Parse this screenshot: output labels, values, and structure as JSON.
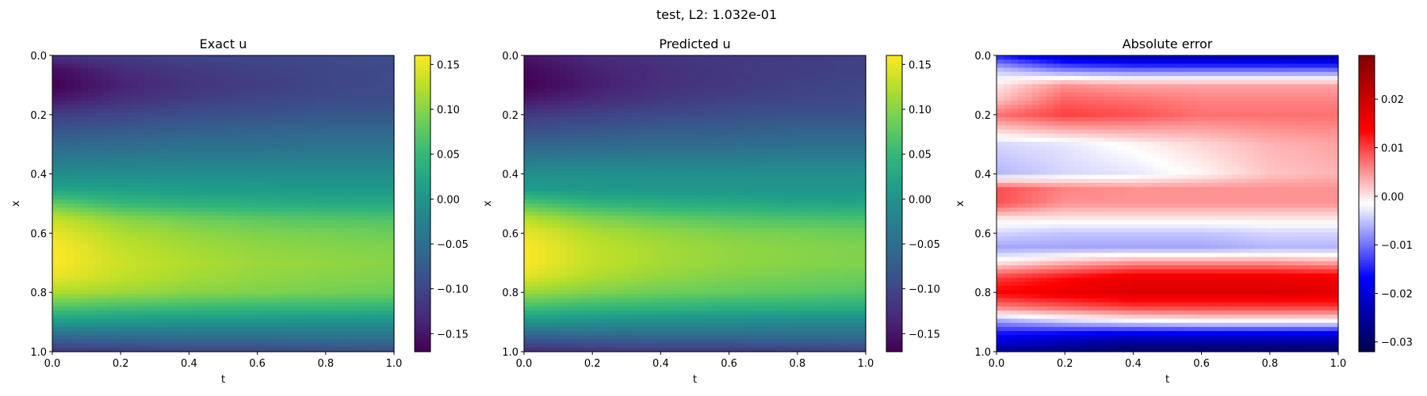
{
  "figure": {
    "suptitle": "test, L2: 1.032e-01"
  },
  "colormaps": {
    "viridis": [
      "#440154",
      "#482878",
      "#3e4989",
      "#31688e",
      "#26828e",
      "#1f9e89",
      "#35b779",
      "#6ece58",
      "#b5de2b",
      "#fde725"
    ],
    "seismic": [
      "#00004c",
      "#0000ff",
      "#ffffff",
      "#ff0000",
      "#800000"
    ]
  },
  "chart_data": [
    {
      "type": "heatmap",
      "title": "Exact u",
      "xlabel": "t",
      "ylabel": "x",
      "xlim": [
        0.0,
        1.0
      ],
      "ylim": [
        0.0,
        1.0
      ],
      "y_inverted": true,
      "xticks": [
        0.0,
        0.2,
        0.4,
        0.6,
        0.8,
        1.0
      ],
      "xtick_labels": [
        "0.0",
        "0.2",
        "0.4",
        "0.6",
        "0.8",
        "1.0"
      ],
      "yticks": [
        0.0,
        0.2,
        0.4,
        0.6,
        0.8,
        1.0
      ],
      "ytick_labels": [
        "0.0",
        "0.2",
        "0.4",
        "0.6",
        "0.8",
        "1.0"
      ],
      "colormap": "viridis",
      "colorbar": {
        "min": -0.17,
        "max": 0.16,
        "ticks": [
          -0.15,
          -0.1,
          -0.05,
          0.0,
          0.05,
          0.1,
          0.15
        ],
        "tick_labels": [
          "−0.15",
          "−0.10",
          "−0.05",
          "0.00",
          "0.05",
          "0.10",
          "0.15"
        ]
      },
      "x": [
        0.0,
        0.2,
        0.4,
        0.6,
        0.8,
        1.0
      ],
      "y": [
        0.0,
        0.05,
        0.1,
        0.15,
        0.2,
        0.3,
        0.4,
        0.45,
        0.5,
        0.55,
        0.6,
        0.65,
        0.7,
        0.75,
        0.8,
        0.85,
        0.9,
        0.95,
        1.0
      ],
      "z": [
        [
          -0.12,
          -0.11,
          -0.1,
          -0.1,
          -0.095,
          -0.09
        ],
        [
          -0.16,
          -0.13,
          -0.115,
          -0.105,
          -0.1,
          -0.095
        ],
        [
          -0.17,
          -0.14,
          -0.12,
          -0.11,
          -0.1,
          -0.095
        ],
        [
          -0.15,
          -0.125,
          -0.11,
          -0.1,
          -0.095,
          -0.09
        ],
        [
          -0.11,
          -0.1,
          -0.09,
          -0.085,
          -0.08,
          -0.08
        ],
        [
          -0.06,
          -0.055,
          -0.05,
          -0.05,
          -0.045,
          -0.045
        ],
        [
          -0.01,
          -0.01,
          -0.01,
          -0.01,
          -0.01,
          -0.01
        ],
        [
          0.02,
          0.015,
          0.012,
          0.01,
          0.008,
          0.008
        ],
        [
          0.08,
          0.05,
          0.04,
          0.035,
          0.03,
          0.03
        ],
        [
          0.13,
          0.1,
          0.085,
          0.075,
          0.07,
          0.065
        ],
        [
          0.15,
          0.12,
          0.105,
          0.095,
          0.09,
          0.085
        ],
        [
          0.16,
          0.13,
          0.115,
          0.105,
          0.1,
          0.095
        ],
        [
          0.16,
          0.135,
          0.12,
          0.11,
          0.105,
          0.1
        ],
        [
          0.15,
          0.13,
          0.115,
          0.105,
          0.1,
          0.095
        ],
        [
          0.12,
          0.11,
          0.1,
          0.095,
          0.09,
          0.085
        ],
        [
          0.07,
          0.06,
          0.055,
          0.05,
          0.05,
          0.045
        ],
        [
          0.01,
          0.005,
          0.0,
          0.0,
          -0.005,
          -0.005
        ],
        [
          -0.06,
          -0.055,
          -0.05,
          -0.05,
          -0.045,
          -0.045
        ],
        [
          -0.12,
          -0.11,
          -0.1,
          -0.1,
          -0.095,
          -0.09
        ]
      ]
    },
    {
      "type": "heatmap",
      "title": "Predicted u",
      "xlabel": "t",
      "ylabel": "x",
      "xlim": [
        0.0,
        1.0
      ],
      "ylim": [
        0.0,
        1.0
      ],
      "y_inverted": true,
      "xticks": [
        0.0,
        0.2,
        0.4,
        0.6,
        0.8,
        1.0
      ],
      "xtick_labels": [
        "0.0",
        "0.2",
        "0.4",
        "0.6",
        "0.8",
        "1.0"
      ],
      "yticks": [
        0.0,
        0.2,
        0.4,
        0.6,
        0.8,
        1.0
      ],
      "ytick_labels": [
        "0.0",
        "0.2",
        "0.4",
        "0.6",
        "0.8",
        "1.0"
      ],
      "colormap": "viridis",
      "colorbar": {
        "min": -0.17,
        "max": 0.16,
        "ticks": [
          -0.15,
          -0.1,
          -0.05,
          0.0,
          0.05,
          0.1,
          0.15
        ],
        "tick_labels": [
          "−0.15",
          "−0.10",
          "−0.05",
          "0.00",
          "0.05",
          "0.10",
          "0.15"
        ]
      },
      "x": [
        0.0,
        0.2,
        0.4,
        0.6,
        0.8,
        1.0
      ],
      "y": [
        0.0,
        0.05,
        0.1,
        0.15,
        0.2,
        0.3,
        0.4,
        0.45,
        0.5,
        0.55,
        0.6,
        0.65,
        0.7,
        0.75,
        0.8,
        0.85,
        0.9,
        0.95,
        1.0
      ],
      "z": [
        [
          -0.15,
          -0.13,
          -0.12,
          -0.115,
          -0.11,
          -0.105
        ],
        [
          -0.165,
          -0.14,
          -0.125,
          -0.115,
          -0.11,
          -0.105
        ],
        [
          -0.17,
          -0.145,
          -0.125,
          -0.115,
          -0.105,
          -0.1
        ],
        [
          -0.15,
          -0.13,
          -0.115,
          -0.105,
          -0.1,
          -0.095
        ],
        [
          -0.115,
          -0.105,
          -0.095,
          -0.09,
          -0.085,
          -0.085
        ],
        [
          -0.065,
          -0.06,
          -0.055,
          -0.055,
          -0.05,
          -0.05
        ],
        [
          -0.005,
          -0.005,
          -0.005,
          -0.005,
          -0.005,
          -0.005
        ],
        [
          0.01,
          0.005,
          0.003,
          0.002,
          0.0,
          0.0
        ],
        [
          0.07,
          0.045,
          0.035,
          0.03,
          0.025,
          0.025
        ],
        [
          0.125,
          0.095,
          0.08,
          0.07,
          0.065,
          0.06
        ],
        [
          0.15,
          0.12,
          0.105,
          0.095,
          0.09,
          0.085
        ],
        [
          0.16,
          0.13,
          0.115,
          0.105,
          0.1,
          0.095
        ],
        [
          0.16,
          0.13,
          0.115,
          0.105,
          0.1,
          0.095
        ],
        [
          0.145,
          0.12,
          0.105,
          0.095,
          0.09,
          0.085
        ],
        [
          0.11,
          0.095,
          0.085,
          0.08,
          0.075,
          0.07
        ],
        [
          0.06,
          0.05,
          0.045,
          0.04,
          0.04,
          0.035
        ],
        [
          0.0,
          -0.005,
          -0.01,
          -0.01,
          -0.015,
          -0.015
        ],
        [
          -0.07,
          -0.065,
          -0.06,
          -0.06,
          -0.055,
          -0.055
        ],
        [
          -0.13,
          -0.12,
          -0.115,
          -0.115,
          -0.11,
          -0.105
        ]
      ]
    },
    {
      "type": "heatmap",
      "title": "Absolute error",
      "xlabel": "t",
      "ylabel": "x",
      "xlim": [
        0.0,
        1.0
      ],
      "ylim": [
        0.0,
        1.0
      ],
      "y_inverted": true,
      "xticks": [
        0.0,
        0.2,
        0.4,
        0.6,
        0.8,
        1.0
      ],
      "xtick_labels": [
        "0.0",
        "0.2",
        "0.4",
        "0.6",
        "0.8",
        "1.0"
      ],
      "yticks": [
        0.0,
        0.2,
        0.4,
        0.6,
        0.8,
        1.0
      ],
      "ytick_labels": [
        "0.0",
        "0.2",
        "0.4",
        "0.6",
        "0.8",
        "1.0"
      ],
      "colormap": "seismic",
      "colorbar": {
        "min": -0.032,
        "max": 0.029,
        "ticks": [
          -0.03,
          -0.02,
          -0.01,
          0.0,
          0.01,
          0.02
        ],
        "tick_labels": [
          "−0.03",
          "−0.02",
          "−0.01",
          "0.00",
          "0.01",
          "0.02"
        ]
      },
      "x": [
        0.0,
        0.2,
        0.4,
        0.6,
        0.8,
        1.0
      ],
      "y": [
        0.0,
        0.05,
        0.1,
        0.15,
        0.2,
        0.3,
        0.4,
        0.45,
        0.5,
        0.55,
        0.6,
        0.65,
        0.7,
        0.75,
        0.8,
        0.85,
        0.9,
        0.95,
        1.0
      ],
      "z": [
        [
          -0.015,
          -0.022,
          -0.025,
          -0.025,
          -0.025,
          -0.025
        ],
        [
          -0.005,
          -0.009,
          -0.01,
          -0.01,
          -0.01,
          -0.01
        ],
        [
          0.0,
          0.005,
          0.004,
          0.004,
          0.004,
          0.004
        ],
        [
          0.002,
          0.008,
          0.007,
          0.006,
          0.006,
          0.006
        ],
        [
          0.007,
          0.01,
          0.009,
          0.007,
          0.007,
          0.007
        ],
        [
          -0.004,
          -0.003,
          -0.001,
          0.001,
          0.003,
          0.004
        ],
        [
          -0.006,
          -0.004,
          -0.003,
          -0.001,
          0.002,
          0.003
        ],
        [
          0.009,
          0.006,
          0.005,
          0.005,
          0.005,
          0.005
        ],
        [
          0.009,
          0.005,
          0.005,
          0.005,
          0.005,
          0.005
        ],
        [
          0.0,
          0.0,
          0.0,
          0.0,
          0.0,
          0.0
        ],
        [
          -0.004,
          -0.005,
          -0.005,
          -0.005,
          -0.004,
          -0.004
        ],
        [
          -0.007,
          -0.007,
          -0.007,
          -0.007,
          -0.006,
          -0.006
        ],
        [
          0.0,
          0.003,
          0.005,
          0.005,
          0.005,
          0.004
        ],
        [
          0.01,
          0.013,
          0.016,
          0.016,
          0.016,
          0.015
        ],
        [
          0.014,
          0.016,
          0.018,
          0.018,
          0.018,
          0.017
        ],
        [
          0.006,
          0.008,
          0.01,
          0.01,
          0.01,
          0.01
        ],
        [
          -0.008,
          -0.005,
          -0.003,
          -0.002,
          -0.002,
          -0.002
        ],
        [
          -0.018,
          -0.02,
          -0.022,
          -0.022,
          -0.022,
          -0.022
        ],
        [
          -0.025,
          -0.028,
          -0.03,
          -0.03,
          -0.03,
          -0.03
        ]
      ]
    }
  ]
}
